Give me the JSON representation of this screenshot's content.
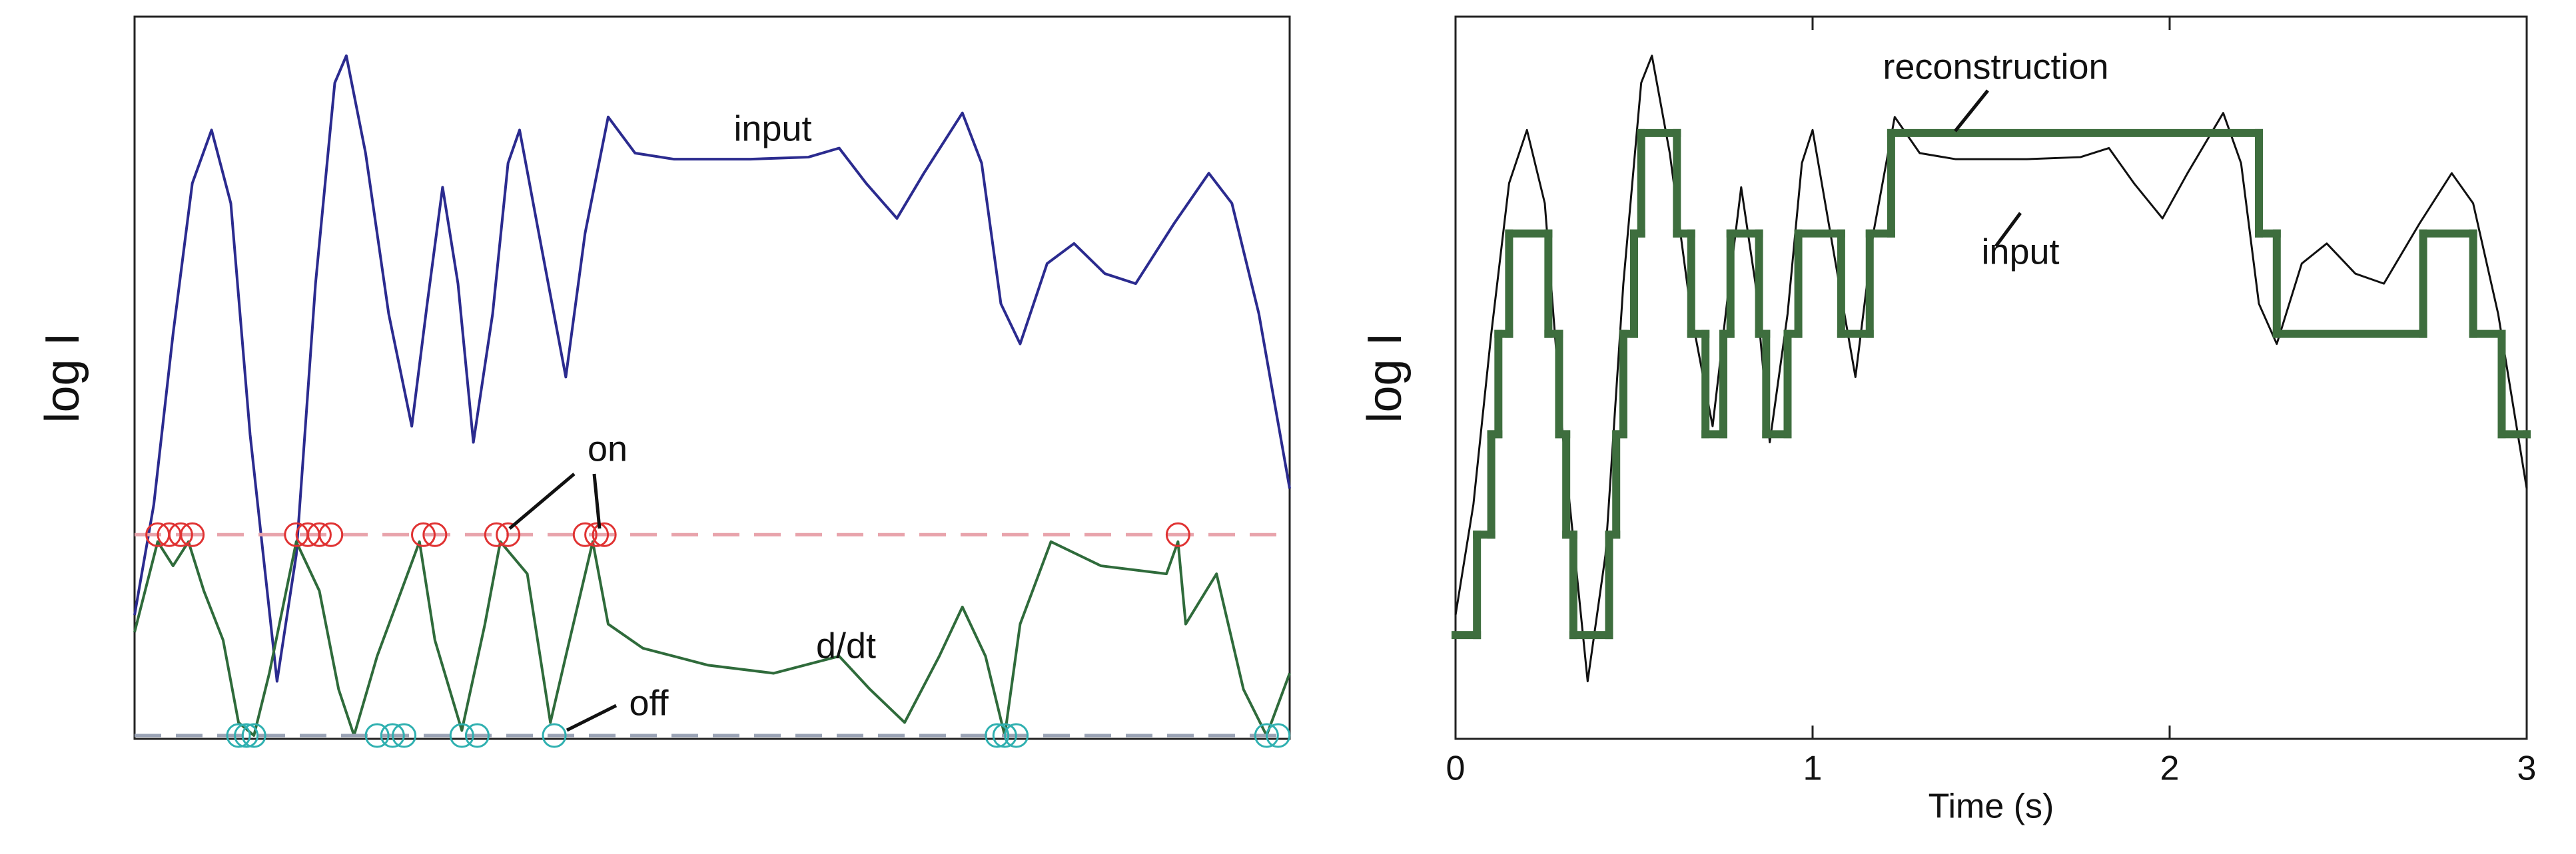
{
  "chart_data": [
    {
      "type": "line",
      "ylabel": "log I",
      "xlim": [
        0,
        3
      ],
      "ylim": [
        0,
        7
      ],
      "annotations": [
        "input",
        "on",
        "d/dt",
        "off"
      ],
      "series": [
        {
          "color": "#2b2b8f",
          "style": "line",
          "x": [
            0,
            0.05,
            0.1,
            0.15,
            0.2,
            0.25,
            0.3,
            0.37,
            0.42,
            0.47,
            0.52,
            0.55,
            0.6,
            0.66,
            0.72,
            0.76,
            0.8,
            0.84,
            0.88,
            0.93,
            0.97,
            1.0,
            1.05,
            1.12,
            1.17,
            1.23,
            1.3,
            1.4,
            1.6,
            1.75,
            1.83,
            1.9,
            1.98,
            2.05,
            2.15,
            2.2,
            2.25,
            2.3,
            2.37,
            2.44,
            2.52,
            2.6,
            2.7,
            2.79,
            2.85,
            2.92,
            3.0
          ],
          "values": [
            1.2,
            2.3,
            4.0,
            5.5,
            6.03,
            5.3,
            3.0,
            0.54,
            1.8,
            4.5,
            6.5,
            6.77,
            5.8,
            4.2,
            3.08,
            4.3,
            5.46,
            4.5,
            2.92,
            4.2,
            5.7,
            6.03,
            5.0,
            3.57,
            5.0,
            6.16,
            5.8,
            5.74,
            5.74,
            5.76,
            5.85,
            5.5,
            5.15,
            5.6,
            6.2,
            5.7,
            4.3,
            3.9,
            4.7,
            4.9,
            4.6,
            4.5,
            5.1,
            5.6,
            5.3,
            4.2,
            2.46
          ]
        },
        {
          "color": "#2f6b3b",
          "style": "line",
          "x": [
            0,
            0.06,
            0.1,
            0.14,
            0.18,
            0.23,
            0.27,
            0.31,
            0.35,
            0.42,
            0.48,
            0.53,
            0.57,
            0.63,
            0.74,
            0.78,
            0.85,
            0.91,
            0.95,
            1.02,
            1.08,
            1.12,
            1.19,
            1.23,
            1.32,
            1.49,
            1.66,
            1.83,
            1.91,
            2.0,
            2.09,
            2.15,
            2.21,
            2.26,
            2.3,
            2.38,
            2.51,
            2.68,
            2.71,
            2.73,
            2.81,
            2.88,
            2.94,
            3.0
          ],
          "values": [
            1.03,
            1.93,
            1.69,
            1.93,
            1.44,
            0.95,
            0.13,
            0,
            0.62,
            1.93,
            1.44,
            0.46,
            0,
            0.79,
            1.93,
            0.95,
            0.05,
            1.11,
            1.93,
            1.61,
            0.13,
            0.79,
            1.93,
            1.11,
            0.87,
            0.7,
            0.62,
            0.79,
            0.46,
            0.13,
            0.79,
            1.28,
            0.79,
            0,
            1.11,
            1.93,
            1.69,
            1.61,
            1.93,
            1.11,
            1.61,
            0.46,
            0,
            0.62
          ]
        },
        {
          "color": "#e8a3ab",
          "style": "dashed",
          "x": [
            0,
            3
          ],
          "values": [
            2,
            2
          ]
        },
        {
          "color": "#9aa3b5",
          "style": "dashed",
          "x": [
            0,
            3
          ],
          "values": [
            0,
            0
          ]
        },
        {
          "color": "#e03232",
          "style": "markers",
          "x": [
            0.06,
            0.09,
            0.12,
            0.15,
            0.42,
            0.45,
            0.48,
            0.51,
            0.75,
            0.78,
            0.94,
            0.97,
            1.17,
            1.2,
            1.22,
            2.71
          ],
          "values": [
            2,
            2,
            2,
            2,
            2,
            2,
            2,
            2,
            2,
            2,
            2,
            2,
            2,
            2,
            2,
            2
          ]
        },
        {
          "color": "#2fb0b0",
          "style": "markers",
          "x": [
            0.27,
            0.29,
            0.31,
            0.63,
            0.67,
            0.7,
            0.85,
            0.89,
            1.09,
            2.24,
            2.26,
            2.29,
            2.94,
            2.97
          ],
          "values": [
            0,
            0,
            0,
            0,
            0,
            0,
            0,
            0,
            0,
            0,
            0,
            0,
            0,
            0
          ]
        }
      ]
    },
    {
      "type": "line",
      "ylabel": "log I",
      "xlabel": "Time (s)",
      "xlim": [
        0,
        3
      ],
      "ylim": [
        0,
        7
      ],
      "xticks": [
        0,
        1,
        2,
        3
      ],
      "annotations": [
        "reconstruction",
        "input"
      ],
      "series": [
        {
          "color": "#111111",
          "style": "line",
          "x": [
            0,
            0.05,
            0.1,
            0.15,
            0.2,
            0.25,
            0.3,
            0.37,
            0.42,
            0.47,
            0.52,
            0.55,
            0.6,
            0.66,
            0.72,
            0.76,
            0.8,
            0.84,
            0.88,
            0.93,
            0.97,
            1.0,
            1.05,
            1.12,
            1.17,
            1.23,
            1.3,
            1.4,
            1.6,
            1.75,
            1.83,
            1.9,
            1.98,
            2.05,
            2.15,
            2.2,
            2.25,
            2.3,
            2.37,
            2.44,
            2.52,
            2.6,
            2.7,
            2.79,
            2.85,
            2.92,
            3.0
          ],
          "values": [
            1.2,
            2.3,
            4.0,
            5.5,
            6.03,
            5.3,
            3.0,
            0.54,
            1.8,
            4.5,
            6.5,
            6.77,
            5.8,
            4.2,
            3.08,
            4.3,
            5.46,
            4.5,
            2.92,
            4.2,
            5.7,
            6.03,
            5.0,
            3.57,
            5.0,
            6.16,
            5.8,
            5.74,
            5.74,
            5.76,
            5.85,
            5.5,
            5.15,
            5.6,
            6.2,
            5.7,
            4.3,
            3.9,
            4.7,
            4.9,
            4.6,
            4.5,
            5.1,
            5.6,
            5.3,
            4.2,
            2.46
          ]
        },
        {
          "color": "#3e6e3e",
          "style": "step",
          "x": [
            0,
            0.06,
            0.1,
            0.12,
            0.15,
            0.26,
            0.29,
            0.31,
            0.33,
            0.43,
            0.45,
            0.47,
            0.5,
            0.52,
            0.62,
            0.66,
            0.7,
            0.75,
            0.77,
            0.85,
            0.87,
            0.93,
            0.96,
            1.08,
            1.16,
            1.22,
            2.25,
            2.3,
            2.71,
            2.85,
            2.93,
            3.0
          ],
          "values": [
            1,
            2,
            3,
            4,
            5,
            4,
            3,
            2,
            1,
            2,
            3,
            4,
            5,
            6,
            5,
            4,
            3,
            4,
            5,
            4,
            3,
            4,
            5,
            4,
            5,
            6,
            5,
            4,
            5,
            4,
            3,
            3
          ]
        }
      ]
    }
  ]
}
